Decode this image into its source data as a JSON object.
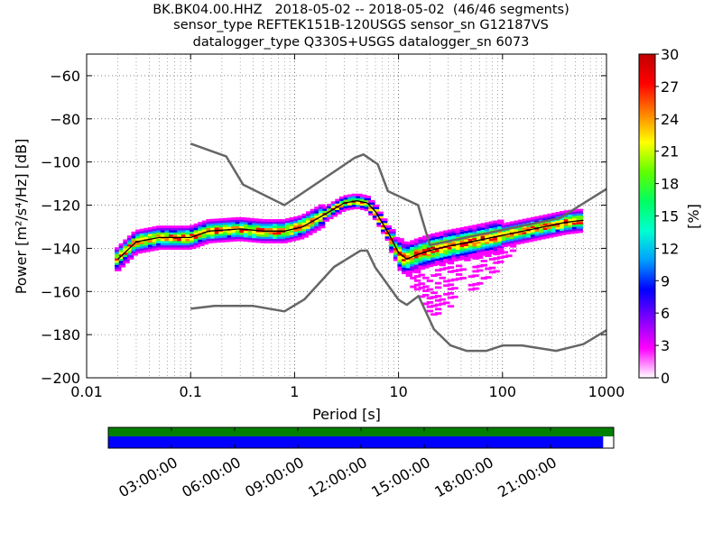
{
  "figure": {
    "title_lines": [
      "BK.BK04.00.HHZ   2018-05-02 -- 2018-05-02  (46/46 segments)",
      "sensor_type REFTEK151B-120USGS sensor_sn G12187VS",
      "datalogger_type Q330S+USGS datalogger_sn 6073"
    ]
  },
  "chart_data": {
    "type": "heatmap",
    "xlabel": "Period [s]",
    "ylabel": "Power [m²/s⁴/Hz] [dB]",
    "x_scale": "log",
    "xlim": [
      0.01,
      1000
    ],
    "ylim": [
      -200,
      -50
    ],
    "x_tick_labels": [
      "0.01",
      "0.1",
      "1",
      "10",
      "100",
      "1000"
    ],
    "y_tick_labels": [
      "−200",
      "−180",
      "−160",
      "−140",
      "−120",
      "−100",
      "−80",
      "−60"
    ],
    "grid": true,
    "colorbar": {
      "label": "[%]",
      "range": [
        0,
        30
      ],
      "tick_labels": [
        "0",
        "3",
        "6",
        "9",
        "12",
        "15",
        "18",
        "21",
        "24",
        "27",
        "30"
      ],
      "colormap": [
        "#ffffff",
        "#ff00ff",
        "#8000ff",
        "#0000ff",
        "#00a0ff",
        "#00ffd0",
        "#00ff60",
        "#60ff00",
        "#ffff00",
        "#ff8000",
        "#ff0000",
        "#c00000"
      ]
    },
    "mean_curve": {
      "period": [
        0.02,
        0.03,
        0.05,
        0.1,
        0.15,
        0.3,
        0.5,
        0.8,
        1.2,
        2,
        3,
        4,
        5,
        6,
        8,
        10,
        12,
        15,
        20,
        30,
        50,
        100,
        200,
        400,
        600
      ],
      "power": [
        -145,
        -137,
        -135,
        -135,
        -132,
        -131,
        -132,
        -132,
        -130,
        -124,
        -119,
        -118,
        -119,
        -123,
        -133,
        -142,
        -145,
        -143,
        -141,
        -139,
        -137,
        -134,
        -131,
        -128,
        -127
      ]
    },
    "nhnm": {
      "period": [
        0.1,
        0.22,
        0.32,
        0.8,
        3.8,
        4.6,
        6.3,
        7.9,
        15.4,
        20,
        354.8,
        1000
      ],
      "power": [
        -91.5,
        -97.4,
        -110.5,
        -120,
        -98,
        -96.5,
        -101,
        -113.5,
        -120,
        -138.5,
        -126,
        -112.5
      ]
    },
    "nlnm": {
      "period": [
        0.1,
        0.17,
        0.4,
        0.8,
        1.24,
        2.4,
        4.3,
        5,
        6,
        10,
        12,
        15.6,
        21.9,
        31.6,
        45,
        70,
        101,
        154,
        328,
        600,
        1000
      ],
      "power": [
        -168,
        -166.7,
        -166.7,
        -169.2,
        -163.7,
        -148.6,
        -141.1,
        -141.1,
        -149,
        -163.8,
        -166.2,
        -162.1,
        -177.5,
        -185,
        -187.5,
        -187.5,
        -185,
        -185,
        -187.5,
        -184.4,
        -178
      ]
    }
  },
  "timeline": {
    "tick_labels": [
      "03:00:00",
      "06:00:00",
      "09:00:00",
      "12:00:00",
      "15:00:00",
      "18:00:00",
      "21:00:00"
    ],
    "tick_hours": [
      3,
      6,
      9,
      12,
      15,
      18,
      21
    ],
    "span_hours": [
      0,
      24
    ],
    "coverage_hours": [
      0,
      24
    ],
    "segments_hours": [
      0,
      23.5
    ],
    "coverage_color": "#007f00",
    "segment_color": "#0000ff"
  }
}
